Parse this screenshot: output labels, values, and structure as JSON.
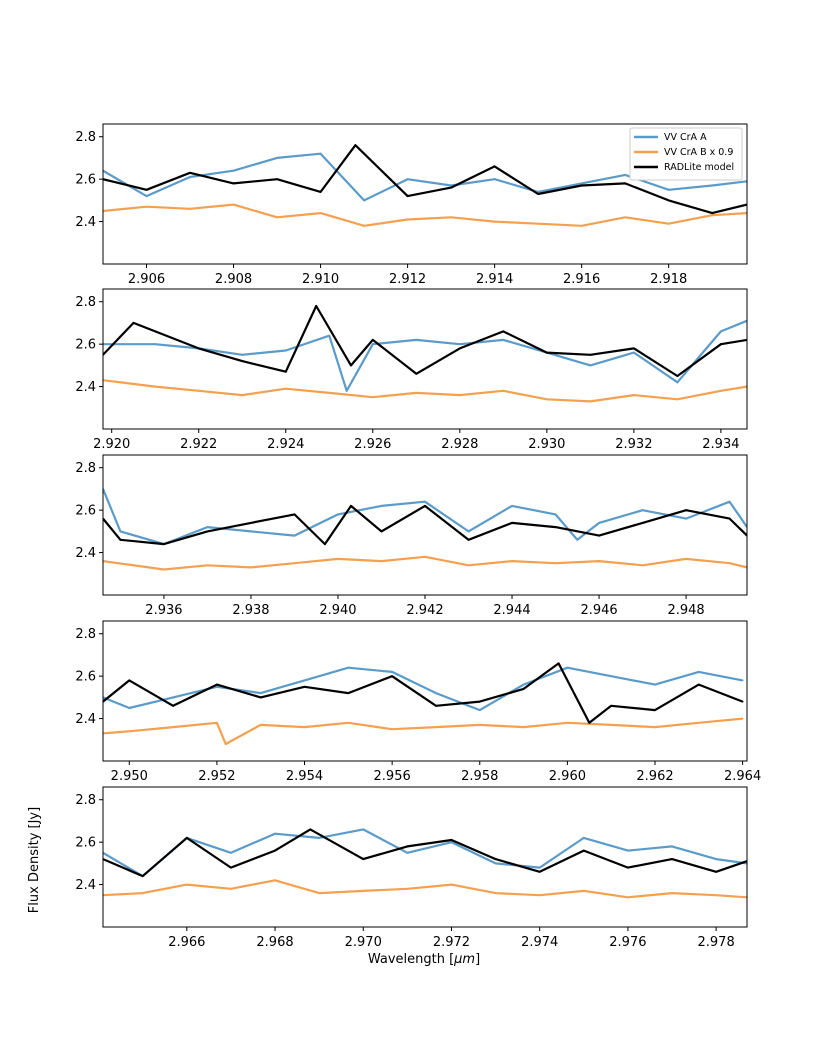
{
  "chart_data": {
    "type": "line",
    "xlabel": "Wavelength [$\\mu$m]",
    "xlabel_prefix": "Wavelength [",
    "xlabel_unit": "μm",
    "xlabel_suffix": "]",
    "ylabel": "Flux Density [Jy]",
    "legend": {
      "location": "upper right of first panel",
      "entries": [
        "VV CrA A",
        "VV CrA B x 0.9",
        "RADLite model"
      ]
    },
    "colors": {
      "VV CrA A": "#5b9bc9",
      "VV CrA B x 0.9": "#f4a04f",
      "RADLite model": "#000000"
    },
    "ylim": [
      2.2,
      2.86
    ],
    "yticks": [
      2.4,
      2.6,
      2.8
    ],
    "panels": [
      {
        "xlim": [
          2.905,
          2.9198
        ],
        "xticks": [
          2.906,
          2.908,
          2.91,
          2.912,
          2.914,
          2.916,
          2.918
        ],
        "series": [
          {
            "name": "VV CrA A",
            "x": [
              2.905,
              2.906,
              2.907,
              2.908,
              2.909,
              2.91,
              2.911,
              2.912,
              2.913,
              2.914,
              2.915,
              2.916,
              2.917,
              2.918,
              2.919,
              2.9198
            ],
            "values": [
              2.64,
              2.52,
              2.61,
              2.64,
              2.7,
              2.72,
              2.5,
              2.6,
              2.57,
              2.6,
              2.54,
              2.58,
              2.62,
              2.55,
              2.57,
              2.59
            ]
          },
          {
            "name": "VV CrA B x 0.9",
            "x": [
              2.905,
              2.906,
              2.907,
              2.908,
              2.909,
              2.91,
              2.911,
              2.912,
              2.913,
              2.914,
              2.915,
              2.916,
              2.917,
              2.918,
              2.919,
              2.9198
            ],
            "values": [
              2.45,
              2.47,
              2.46,
              2.48,
              2.42,
              2.44,
              2.38,
              2.41,
              2.42,
              2.4,
              2.39,
              2.38,
              2.42,
              2.39,
              2.43,
              2.44
            ]
          },
          {
            "name": "RADLite model",
            "x": [
              2.905,
              2.906,
              2.907,
              2.908,
              2.909,
              2.91,
              2.9108,
              2.912,
              2.913,
              2.914,
              2.915,
              2.916,
              2.917,
              2.918,
              2.919,
              2.9198
            ],
            "values": [
              2.6,
              2.55,
              2.63,
              2.58,
              2.6,
              2.54,
              2.76,
              2.52,
              2.56,
              2.66,
              2.53,
              2.57,
              2.58,
              2.5,
              2.44,
              2.48
            ]
          }
        ]
      },
      {
        "xlim": [
          2.9198,
          2.9346
        ],
        "xticks": [
          2.92,
          2.922,
          2.924,
          2.926,
          2.928,
          2.93,
          2.932,
          2.934
        ],
        "series": [
          {
            "name": "VV CrA A",
            "x": [
              2.9198,
              2.921,
              2.922,
              2.923,
              2.924,
              2.925,
              2.9254,
              2.926,
              2.927,
              2.928,
              2.929,
              2.93,
              2.931,
              2.932,
              2.933,
              2.934,
              2.9346
            ],
            "values": [
              2.6,
              2.6,
              2.58,
              2.55,
              2.57,
              2.64,
              2.38,
              2.6,
              2.62,
              2.6,
              2.62,
              2.56,
              2.5,
              2.56,
              2.42,
              2.66,
              2.71
            ]
          },
          {
            "name": "VV CrA B x 0.9",
            "x": [
              2.9198,
              2.921,
              2.922,
              2.923,
              2.924,
              2.925,
              2.926,
              2.927,
              2.928,
              2.929,
              2.93,
              2.931,
              2.932,
              2.933,
              2.934,
              2.9346
            ],
            "values": [
              2.43,
              2.4,
              2.38,
              2.36,
              2.39,
              2.37,
              2.35,
              2.37,
              2.36,
              2.38,
              2.34,
              2.33,
              2.36,
              2.34,
              2.38,
              2.4
            ]
          },
          {
            "name": "RADLite model",
            "x": [
              2.9198,
              2.9205,
              2.922,
              2.923,
              2.924,
              2.9247,
              2.9255,
              2.926,
              2.927,
              2.928,
              2.929,
              2.93,
              2.931,
              2.932,
              2.933,
              2.934,
              2.9346
            ],
            "values": [
              2.55,
              2.7,
              2.58,
              2.52,
              2.47,
              2.78,
              2.5,
              2.62,
              2.46,
              2.58,
              2.66,
              2.56,
              2.55,
              2.58,
              2.45,
              2.6,
              2.62
            ]
          }
        ]
      },
      {
        "xlim": [
          2.9346,
          2.9494
        ],
        "xticks": [
          2.936,
          2.938,
          2.94,
          2.942,
          2.944,
          2.946,
          2.948
        ],
        "series": [
          {
            "name": "VV CrA A",
            "x": [
              2.9346,
              2.935,
              2.936,
              2.937,
              2.938,
              2.939,
              2.94,
              2.941,
              2.942,
              2.943,
              2.944,
              2.945,
              2.9455,
              2.946,
              2.947,
              2.948,
              2.949,
              2.9494
            ],
            "values": [
              2.7,
              2.5,
              2.44,
              2.52,
              2.5,
              2.48,
              2.58,
              2.62,
              2.64,
              2.5,
              2.62,
              2.58,
              2.46,
              2.54,
              2.6,
              2.56,
              2.64,
              2.52
            ]
          },
          {
            "name": "VV CrA B x 0.9",
            "x": [
              2.9346,
              2.936,
              2.937,
              2.938,
              2.939,
              2.94,
              2.941,
              2.942,
              2.943,
              2.944,
              2.945,
              2.946,
              2.947,
              2.948,
              2.949,
              2.9494
            ],
            "values": [
              2.36,
              2.32,
              2.34,
              2.33,
              2.35,
              2.37,
              2.36,
              2.38,
              2.34,
              2.36,
              2.35,
              2.36,
              2.34,
              2.37,
              2.35,
              2.33
            ]
          },
          {
            "name": "RADLite model",
            "x": [
              2.9346,
              2.935,
              2.936,
              2.937,
              2.938,
              2.939,
              2.9397,
              2.9403,
              2.941,
              2.942,
              2.943,
              2.944,
              2.945,
              2.946,
              2.947,
              2.948,
              2.949,
              2.9494
            ],
            "values": [
              2.56,
              2.46,
              2.44,
              2.5,
              2.54,
              2.58,
              2.44,
              2.62,
              2.5,
              2.62,
              2.46,
              2.54,
              2.52,
              2.48,
              2.54,
              2.6,
              2.56,
              2.48
            ]
          }
        ]
      },
      {
        "xlim": [
          2.9494,
          2.9641
        ],
        "xticks": [
          2.95,
          2.952,
          2.954,
          2.956,
          2.958,
          2.96,
          2.962,
          2.964
        ],
        "series": [
          {
            "name": "VV CrA A",
            "x": [
              2.9494,
              2.95,
              2.951,
              2.952,
              2.953,
              2.954,
              2.955,
              2.956,
              2.957,
              2.958,
              2.959,
              2.96,
              2.961,
              2.962,
              2.963,
              2.964
            ],
            "values": [
              2.5,
              2.45,
              2.5,
              2.55,
              2.52,
              2.58,
              2.64,
              2.62,
              2.52,
              2.44,
              2.56,
              2.64,
              2.6,
              2.56,
              2.62,
              2.58
            ]
          },
          {
            "name": "VV CrA B x 0.9",
            "x": [
              2.9494,
              2.95,
              2.951,
              2.952,
              2.9522,
              2.953,
              2.954,
              2.955,
              2.956,
              2.957,
              2.958,
              2.959,
              2.96,
              2.961,
              2.962,
              2.963,
              2.964
            ],
            "values": [
              2.33,
              2.34,
              2.36,
              2.38,
              2.28,
              2.37,
              2.36,
              2.38,
              2.35,
              2.36,
              2.37,
              2.36,
              2.38,
              2.37,
              2.36,
              2.38,
              2.4
            ]
          },
          {
            "name": "RADLite model",
            "x": [
              2.9494,
              2.95,
              2.951,
              2.952,
              2.953,
              2.954,
              2.955,
              2.956,
              2.957,
              2.958,
              2.959,
              2.9598,
              2.9605,
              2.961,
              2.962,
              2.963,
              2.964
            ],
            "values": [
              2.48,
              2.58,
              2.46,
              2.56,
              2.5,
              2.55,
              2.52,
              2.6,
              2.46,
              2.48,
              2.54,
              2.66,
              2.38,
              2.46,
              2.44,
              2.56,
              2.48
            ]
          }
        ]
      },
      {
        "xlim": [
          2.9641,
          2.9787
        ],
        "xticks": [
          2.966,
          2.968,
          2.97,
          2.972,
          2.974,
          2.976,
          2.978
        ],
        "series": [
          {
            "name": "VV CrA A",
            "x": [
              2.9641,
              2.965,
              2.966,
              2.967,
              2.968,
              2.969,
              2.97,
              2.971,
              2.972,
              2.973,
              2.974,
              2.975,
              2.976,
              2.977,
              2.978,
              2.9787
            ],
            "values": [
              2.55,
              2.44,
              2.62,
              2.55,
              2.64,
              2.62,
              2.66,
              2.55,
              2.6,
              2.5,
              2.48,
              2.62,
              2.56,
              2.58,
              2.52,
              2.5
            ]
          },
          {
            "name": "VV CrA B x 0.9",
            "x": [
              2.9641,
              2.965,
              2.966,
              2.967,
              2.968,
              2.969,
              2.97,
              2.971,
              2.972,
              2.973,
              2.974,
              2.975,
              2.976,
              2.977,
              2.978,
              2.9787
            ],
            "values": [
              2.35,
              2.36,
              2.4,
              2.38,
              2.42,
              2.36,
              2.37,
              2.38,
              2.4,
              2.36,
              2.35,
              2.37,
              2.34,
              2.36,
              2.35,
              2.34
            ]
          },
          {
            "name": "RADLite model",
            "x": [
              2.9641,
              2.965,
              2.966,
              2.967,
              2.968,
              2.9688,
              2.97,
              2.971,
              2.972,
              2.973,
              2.974,
              2.975,
              2.976,
              2.977,
              2.978,
              2.9787
            ],
            "values": [
              2.52,
              2.44,
              2.62,
              2.48,
              2.56,
              2.66,
              2.52,
              2.58,
              2.61,
              2.52,
              2.46,
              2.56,
              2.48,
              2.52,
              2.46,
              2.51
            ]
          }
        ]
      }
    ]
  }
}
